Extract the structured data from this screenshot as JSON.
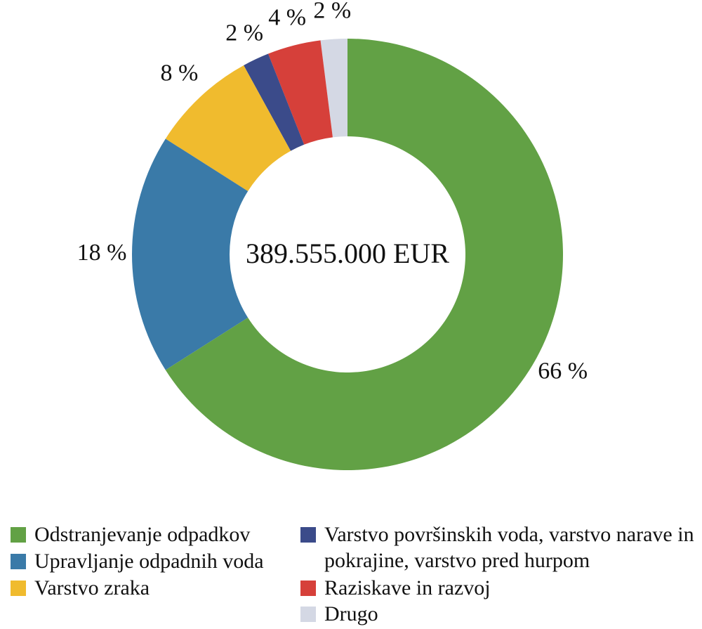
{
  "chart_data": {
    "type": "donut",
    "center_label": "389.555.000 EUR",
    "categories": [
      "Odstranjevanje odpadkov",
      "Upravljanje odpadnih voda",
      "Varstvo zraka",
      "Varstvo površinskih voda, varstvo narave in pokrajine, varstvo pred hurpom",
      "Raziskave in razvoj",
      "Drugo"
    ],
    "values": [
      66,
      18,
      8,
      2,
      4,
      2
    ],
    "value_labels": [
      "66 %",
      "18 %",
      "8 %",
      "2 %",
      "4 %",
      "2 %"
    ],
    "colors": [
      "#62a145",
      "#3a7aa8",
      "#f0bb2e",
      "#3b4b8a",
      "#d6403a",
      "#d4d8e4"
    ],
    "legend": "bottom"
  }
}
